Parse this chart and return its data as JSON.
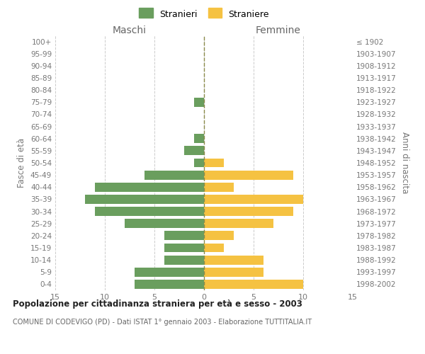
{
  "age_groups": [
    "100+",
    "95-99",
    "90-94",
    "85-89",
    "80-84",
    "75-79",
    "70-74",
    "65-69",
    "60-64",
    "55-59",
    "50-54",
    "45-49",
    "40-44",
    "35-39",
    "30-34",
    "25-29",
    "20-24",
    "15-19",
    "10-14",
    "5-9",
    "0-4"
  ],
  "birth_years": [
    "≤ 1902",
    "1903-1907",
    "1908-1912",
    "1913-1917",
    "1918-1922",
    "1923-1927",
    "1928-1932",
    "1933-1937",
    "1938-1942",
    "1943-1947",
    "1948-1952",
    "1953-1957",
    "1958-1962",
    "1963-1967",
    "1968-1972",
    "1973-1977",
    "1978-1982",
    "1983-1987",
    "1988-1992",
    "1993-1997",
    "1998-2002"
  ],
  "maschi": [
    0,
    0,
    0,
    0,
    0,
    1,
    0,
    0,
    1,
    2,
    1,
    6,
    11,
    12,
    11,
    8,
    4,
    4,
    4,
    7,
    7
  ],
  "femmine": [
    0,
    0,
    0,
    0,
    0,
    0,
    0,
    0,
    0,
    0,
    2,
    9,
    3,
    10,
    9,
    7,
    3,
    2,
    6,
    6,
    10
  ],
  "male_color": "#6a9e5e",
  "female_color": "#f5c242",
  "title": "Popolazione per cittadinanza straniera per età e sesso - 2003",
  "subtitle": "COMUNE DI CODEVIGO (PD) - Dati ISTAT 1° gennaio 2003 - Elaborazione TUTTITALIA.IT",
  "legend_male": "Stranieri",
  "legend_female": "Straniere",
  "label_maschi": "Maschi",
  "label_femmine": "Femmine",
  "ylabel_left": "Fasce di età",
  "ylabel_right": "Anni di nascita",
  "xlim": 15,
  "background_color": "#ffffff",
  "grid_color": "#cccccc",
  "text_color": "#777777"
}
